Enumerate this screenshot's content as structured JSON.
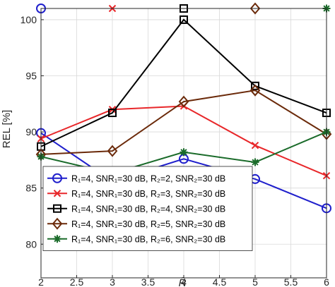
{
  "chart_data": {
    "type": "line",
    "xlabel": "R̂",
    "ylabel": "REL [%]",
    "xlim": [
      2,
      6
    ],
    "ylim": [
      77,
      101
    ],
    "xticks": [
      "2",
      "2.5",
      "3",
      "3.5",
      "4",
      "4.5",
      "5",
      "5.5",
      "6"
    ],
    "yticks": [
      "80",
      "85",
      "90",
      "95",
      "100"
    ],
    "grid": true,
    "legend_placement": "bottom-left",
    "x": [
      2,
      3,
      4,
      5,
      6
    ],
    "series": [
      {
        "name": "R₁=4, SNR₁=30 dB, R₂=2, SNR₂=30 dB",
        "color": "#1f1fcc",
        "marker": "circle",
        "values": [
          89.9,
          85.6,
          87.6,
          85.8,
          83.2
        ],
        "offscale_marker_x": 2
      },
      {
        "name": "R₁=4, SNR₁=30 dB, R₂=3, SNR₂=30 dB",
        "color": "#e8272a",
        "marker": "x",
        "values": [
          89.4,
          92.0,
          92.3,
          88.8,
          86.1
        ],
        "offscale_marker_x": 3
      },
      {
        "name": "R₁=4, SNR₁=30 dB, R₂=4, SNR₂=30 dB",
        "color": "#000000",
        "marker": "square",
        "values": [
          88.7,
          91.7,
          100.0,
          94.1,
          91.7
        ],
        "offscale_marker_x": 4
      },
      {
        "name": "R₁=4, SNR₁=30 dB, R₂=5, SNR₂=30 dB",
        "color": "#6b2a0a",
        "marker": "diamond",
        "values": [
          88.0,
          88.3,
          92.7,
          93.7,
          89.8
        ],
        "offscale_marker_x": 5
      },
      {
        "name": "R₁=4, SNR₁=30 dB, R₂=6, SNR₂=30 dB",
        "color": "#1a6b2a",
        "marker": "star",
        "values": [
          87.8,
          86.3,
          88.2,
          87.3,
          90.0
        ],
        "offscale_marker_x": 6
      }
    ]
  }
}
